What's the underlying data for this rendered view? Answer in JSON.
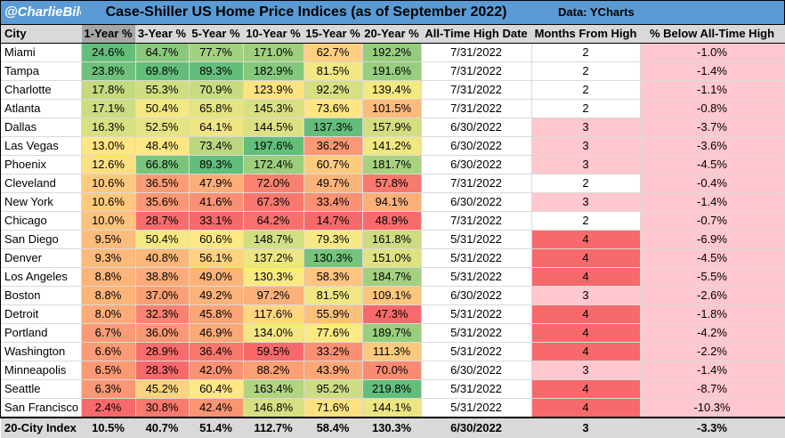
{
  "header": {
    "handle": "@CharlieBilello",
    "title": "Case-Shiller US Home Price Indices (as of September 2022)",
    "source": "Data: YCharts"
  },
  "columns": [
    "City",
    "1-Year %",
    "3-Year %",
    "5-Year %",
    "10-Year %",
    "15-Year %",
    "20-Year %",
    "All-Time High Date",
    "Months From High",
    "% Below All-Time High"
  ],
  "rows": [
    {
      "city": "Miami",
      "y1": "24.6%",
      "y3": "64.7%",
      "y5": "77.7%",
      "y10": "171.0%",
      "y15": "62.7%",
      "y20": "192.2%",
      "ath": "7/31/2022",
      "months": "2",
      "below": "-1.0%"
    },
    {
      "city": "Tampa",
      "y1": "23.8%",
      "y3": "69.8%",
      "y5": "89.3%",
      "y10": "182.9%",
      "y15": "81.5%",
      "y20": "191.6%",
      "ath": "7/31/2022",
      "months": "2",
      "below": "-1.4%"
    },
    {
      "city": "Charlotte",
      "y1": "17.8%",
      "y3": "55.3%",
      "y5": "70.9%",
      "y10": "123.9%",
      "y15": "92.2%",
      "y20": "139.4%",
      "ath": "7/31/2022",
      "months": "2",
      "below": "-1.1%"
    },
    {
      "city": "Atlanta",
      "y1": "17.1%",
      "y3": "50.4%",
      "y5": "65.8%",
      "y10": "145.3%",
      "y15": "73.6%",
      "y20": "101.5%",
      "ath": "7/31/2022",
      "months": "2",
      "below": "-0.8%"
    },
    {
      "city": "Dallas",
      "y1": "16.3%",
      "y3": "52.5%",
      "y5": "64.1%",
      "y10": "144.5%",
      "y15": "137.3%",
      "y20": "157.9%",
      "ath": "6/30/2022",
      "months": "3",
      "below": "-3.7%"
    },
    {
      "city": "Las Vegas",
      "y1": "13.0%",
      "y3": "48.4%",
      "y5": "73.4%",
      "y10": "197.6%",
      "y15": "36.2%",
      "y20": "141.2%",
      "ath": "6/30/2022",
      "months": "3",
      "below": "-3.6%"
    },
    {
      "city": "Phoenix",
      "y1": "12.6%",
      "y3": "66.8%",
      "y5": "89.3%",
      "y10": "172.4%",
      "y15": "60.7%",
      "y20": "181.7%",
      "ath": "6/30/2022",
      "months": "3",
      "below": "-4.5%"
    },
    {
      "city": "Cleveland",
      "y1": "10.6%",
      "y3": "36.5%",
      "y5": "47.9%",
      "y10": "72.0%",
      "y15": "49.7%",
      "y20": "57.8%",
      "ath": "7/31/2022",
      "months": "2",
      "below": "-0.4%"
    },
    {
      "city": "New York",
      "y1": "10.6%",
      "y3": "35.6%",
      "y5": "41.6%",
      "y10": "67.3%",
      "y15": "33.4%",
      "y20": "94.1%",
      "ath": "6/30/2022",
      "months": "3",
      "below": "-1.4%"
    },
    {
      "city": "Chicago",
      "y1": "10.0%",
      "y3": "28.7%",
      "y5": "33.1%",
      "y10": "64.2%",
      "y15": "14.7%",
      "y20": "48.9%",
      "ath": "7/31/2022",
      "months": "2",
      "below": "-0.7%"
    },
    {
      "city": "San Diego",
      "y1": "9.5%",
      "y3": "50.4%",
      "y5": "60.6%",
      "y10": "148.7%",
      "y15": "79.3%",
      "y20": "161.8%",
      "ath": "5/31/2022",
      "months": "4",
      "below": "-6.9%"
    },
    {
      "city": "Denver",
      "y1": "9.3%",
      "y3": "40.8%",
      "y5": "56.1%",
      "y10": "137.2%",
      "y15": "130.3%",
      "y20": "151.0%",
      "ath": "5/31/2022",
      "months": "4",
      "below": "-4.5%"
    },
    {
      "city": "Los Angeles",
      "y1": "8.8%",
      "y3": "38.8%",
      "y5": "49.0%",
      "y10": "130.3%",
      "y15": "58.3%",
      "y20": "184.7%",
      "ath": "5/31/2022",
      "months": "4",
      "below": "-5.5%"
    },
    {
      "city": "Boston",
      "y1": "8.8%",
      "y3": "37.0%",
      "y5": "49.2%",
      "y10": "97.2%",
      "y15": "81.5%",
      "y20": "109.1%",
      "ath": "6/30/2022",
      "months": "3",
      "below": "-2.6%"
    },
    {
      "city": "Detroit",
      "y1": "8.0%",
      "y3": "32.3%",
      "y5": "45.8%",
      "y10": "117.6%",
      "y15": "55.9%",
      "y20": "47.3%",
      "ath": "5/31/2022",
      "months": "4",
      "below": "-1.8%"
    },
    {
      "city": "Portland",
      "y1": "6.7%",
      "y3": "36.0%",
      "y5": "46.9%",
      "y10": "134.0%",
      "y15": "77.6%",
      "y20": "189.7%",
      "ath": "5/31/2022",
      "months": "4",
      "below": "-4.2%"
    },
    {
      "city": "Washington",
      "y1": "6.6%",
      "y3": "28.9%",
      "y5": "36.4%",
      "y10": "59.5%",
      "y15": "33.2%",
      "y20": "111.3%",
      "ath": "5/31/2022",
      "months": "4",
      "below": "-2.2%"
    },
    {
      "city": "Minneapolis",
      "y1": "6.5%",
      "y3": "28.3%",
      "y5": "42.0%",
      "y10": "88.2%",
      "y15": "43.9%",
      "y20": "70.0%",
      "ath": "6/30/2022",
      "months": "3",
      "below": "-1.4%"
    },
    {
      "city": "Seattle",
      "y1": "6.3%",
      "y3": "45.2%",
      "y5": "60.4%",
      "y10": "163.4%",
      "y15": "95.2%",
      "y20": "219.8%",
      "ath": "5/31/2022",
      "months": "4",
      "below": "-8.7%"
    },
    {
      "city": "San Francisco",
      "y1": "2.4%",
      "y3": "30.8%",
      "y5": "42.4%",
      "y10": "146.8%",
      "y15": "71.6%",
      "y20": "144.1%",
      "ath": "5/31/2022",
      "months": "4",
      "below": "-10.3%"
    }
  ],
  "total": {
    "city": "20-City Index",
    "y1": "10.5%",
    "y3": "40.7%",
    "y5": "51.4%",
    "y10": "112.7%",
    "y15": "58.4%",
    "y20": "130.3%",
    "ath": "6/30/2022",
    "months": "3",
    "below": "-3.3%"
  },
  "chart_data": {
    "type": "table",
    "title": "Case-Shiller US Home Price Indices (as of September 2022)",
    "columns": [
      "City",
      "1-Year %",
      "3-Year %",
      "5-Year %",
      "10-Year %",
      "15-Year %",
      "20-Year %",
      "All-Time High Date",
      "Months From High",
      "% Below All-Time High"
    ],
    "heatmap_colors": {
      "high": "#63be7b",
      "mid": "#ffeb84",
      "low": "#f8696b",
      "months_2": "#ffffff",
      "months_3": "#ffc7ce",
      "months_4": "#f8696b",
      "below_fill": "#ffc7ce"
    }
  },
  "colors": {
    "title_bar": "#5b9bd5",
    "header": "#d9d9d9",
    "header_sorted": "#a6a6a6",
    "total_row": "#d9d9d9"
  }
}
